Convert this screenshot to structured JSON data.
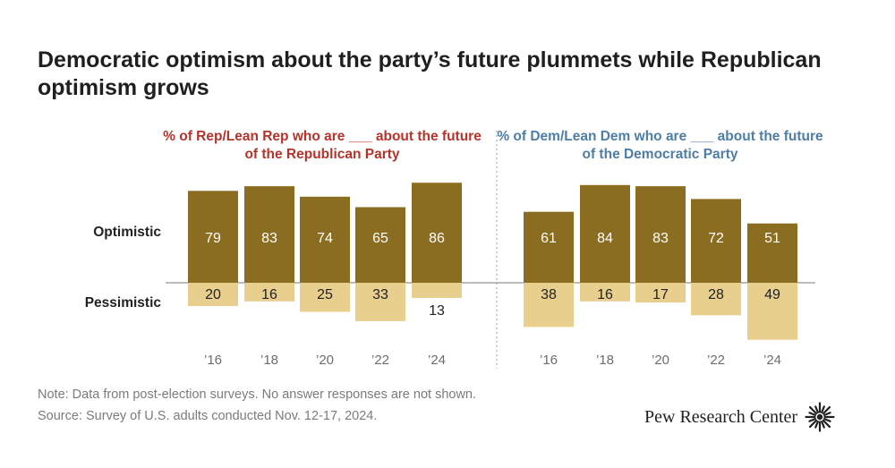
{
  "title": "Democratic optimism about the party’s future plummets while Republican optimism grows",
  "row_labels": {
    "optimistic": "Optimistic",
    "pessimistic": "Pessimistic"
  },
  "colors": {
    "optimistic": "#8a6d21",
    "pessimistic": "#e8cf8d",
    "rep_title": "#b5332a",
    "dem_title": "#4d7ea8"
  },
  "chart_data": [
    {
      "type": "bar",
      "title": "% of Rep/Lean Rep who are ___ about the future of the Republican Party",
      "categories": [
        "’16",
        "’18",
        "’20",
        "’22",
        "’24"
      ],
      "series": [
        {
          "name": "Optimistic",
          "values": [
            79,
            83,
            74,
            65,
            86
          ]
        },
        {
          "name": "Pessimistic",
          "values": [
            20,
            16,
            25,
            33,
            13
          ]
        }
      ]
    },
    {
      "type": "bar",
      "title": "% of Dem/Lean Dem who are ___ about the future of the Democratic Party",
      "categories": [
        "’16",
        "’18",
        "’20",
        "’22",
        "’24"
      ],
      "series": [
        {
          "name": "Optimistic",
          "values": [
            61,
            84,
            83,
            72,
            51
          ]
        },
        {
          "name": "Pessimistic",
          "values": [
            38,
            16,
            17,
            28,
            49
          ]
        }
      ]
    }
  ],
  "notes": {
    "note": "Note: Data from post-election surveys. No answer responses are not shown.",
    "source": "Source: Survey of U.S. adults conducted Nov. 12-17, 2024."
  },
  "brand": {
    "name": "Pew Research Center"
  }
}
